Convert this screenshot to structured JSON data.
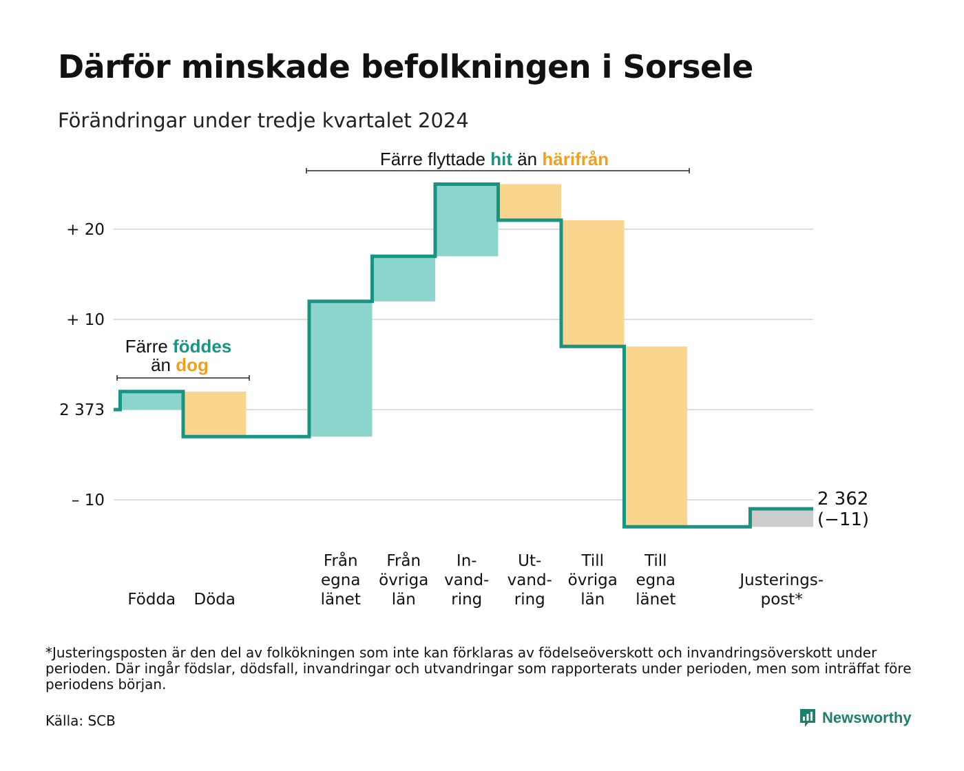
{
  "title": "Därför minskade befolkningen i Sorsele",
  "subtitle": "Förändringar under tredje kvartalet 2024",
  "colors": {
    "teal_line": "#1a9482",
    "teal_fill": "#8dd5cc",
    "orange_fill": "#f9d58e",
    "orange_text": "#f0a020",
    "grey_fill": "#cccccc",
    "grid": "#dddddd",
    "brand": "#1e7f6b"
  },
  "annotations": {
    "births_deaths": {
      "line1_prefix": "Färre",
      "line1_highlight": "föddes",
      "line2_prefix": "än",
      "line2_highlight": "dog"
    },
    "migration": {
      "prefix": "Färre flyttade",
      "highlight1": "hit",
      "middle": "än",
      "highlight2": "härifrån"
    }
  },
  "chart_data": {
    "type": "waterfall",
    "start_value": 2373,
    "end_value": 2362,
    "net_change": -11,
    "y_tick_labels": [
      "+ 20",
      "+ 10",
      "2 373",
      "– 10"
    ],
    "y_tick_values": [
      20,
      10,
      0,
      -10
    ],
    "ylim": [
      -13,
      25
    ],
    "end_label_value": "2 362",
    "end_label_change": "(−11)",
    "steps": [
      {
        "label_lines": [
          "Födda"
        ],
        "change": 2,
        "kind": "inflow"
      },
      {
        "label_lines": [
          "Döda"
        ],
        "change": -5,
        "kind": "outflow"
      },
      {
        "label_lines": [
          "Från",
          "egna",
          "länet"
        ],
        "change": 15,
        "kind": "inflow"
      },
      {
        "label_lines": [
          "Från",
          "övriga",
          "län"
        ],
        "change": 5,
        "kind": "inflow"
      },
      {
        "label_lines": [
          "In-",
          "vand-",
          "ring"
        ],
        "change": 8,
        "kind": "inflow"
      },
      {
        "label_lines": [
          "Ut-",
          "vand-",
          "ring"
        ],
        "change": -4,
        "kind": "outflow"
      },
      {
        "label_lines": [
          "Till",
          "övriga",
          "län"
        ],
        "change": -14,
        "kind": "outflow"
      },
      {
        "label_lines": [
          "Till",
          "egna",
          "länet"
        ],
        "change": -20,
        "kind": "outflow"
      },
      {
        "label_lines": [
          "Justerings-",
          "post*"
        ],
        "change": 2,
        "kind": "adjustment"
      }
    ]
  },
  "footnote": "*Justeringsposten är den del av folkökningen som inte kan förklaras av födelseöverskott och invandringsöverskott under perioden. Där ingår födslar, dödsfall, invandringar och utvandringar som rapporterats under perioden, men som inträffat före periodens början.",
  "source": "Källa: SCB",
  "brand": {
    "name": "Newsworthy",
    "icon": "newsworthy-chart-icon"
  }
}
